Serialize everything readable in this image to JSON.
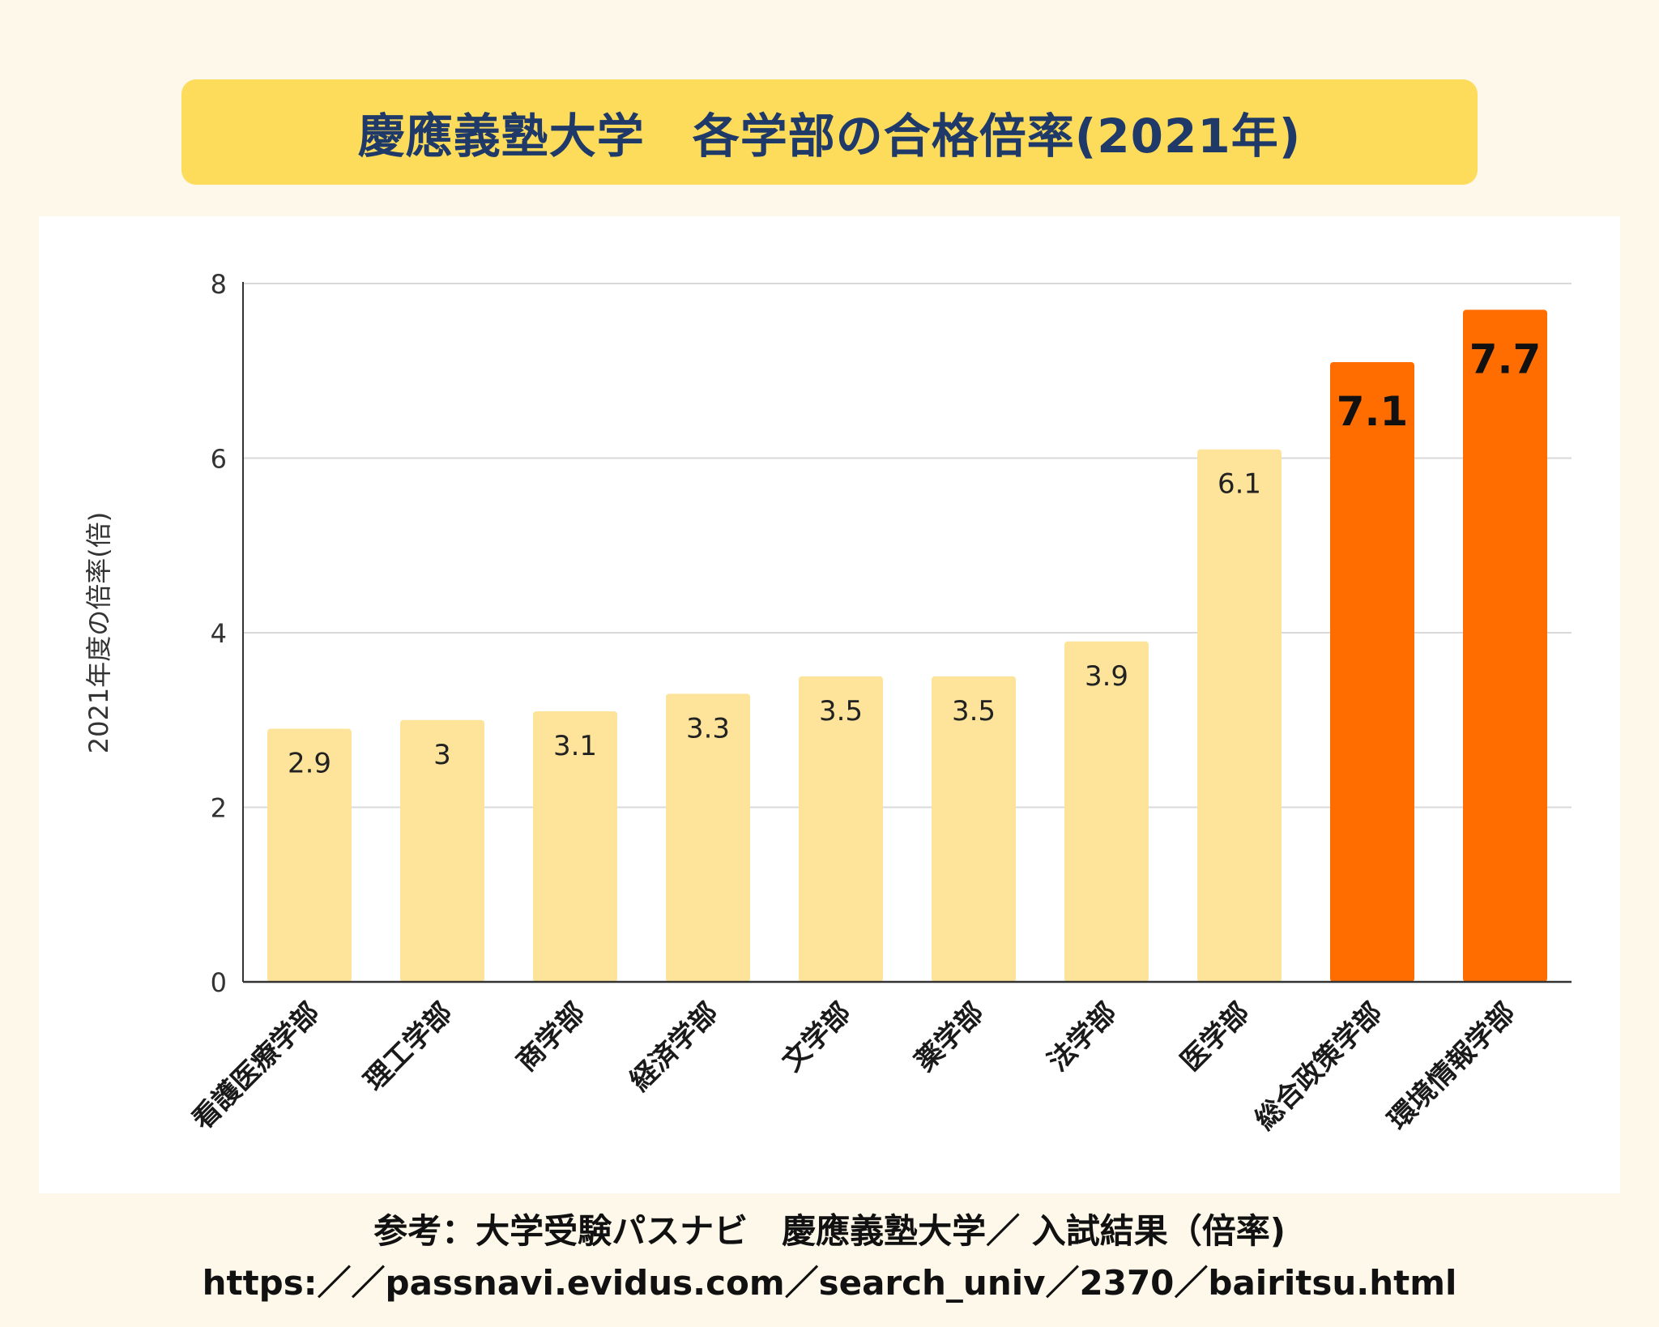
{
  "header": {
    "title": "慶應義塾大学　各学部の合格倍率(2021年)"
  },
  "footer": {
    "source_line1": "参考：大学受験パスナビ　慶應義塾大学／ 入試結果（倍率)",
    "source_line2": "https:／／passnavi.evidus.com／search_univ／2370／bairitsu.html"
  },
  "chart_data": {
    "type": "bar",
    "ylabel": "2021年度の倍率(倍)",
    "xlabel": "",
    "ylim": [
      0,
      8
    ],
    "yticks": [
      0,
      2,
      4,
      6,
      8
    ],
    "grid": true,
    "categories": [
      "看護医療学部",
      "理工学部",
      "商学部",
      "経済学部",
      "文学部",
      "薬学部",
      "法学部",
      "医学部",
      "総合政策学部",
      "環境情報学部"
    ],
    "values": [
      2.9,
      3,
      3.1,
      3.3,
      3.5,
      3.5,
      3.9,
      6.1,
      7.1,
      7.7
    ],
    "data_labels": [
      "2.9",
      "3",
      "3.1",
      "3.3",
      "3.5",
      "3.5",
      "3.9",
      "6.1",
      "7.1",
      "7.7"
    ],
    "highlighted": [
      false,
      false,
      false,
      false,
      false,
      false,
      false,
      false,
      true,
      true
    ],
    "colors": {
      "bar": "#fde49a",
      "bar_highlight": "#ff6d00",
      "grid": "#d9d9d9",
      "axis": "#333333",
      "tick_text": "#333333",
      "label_text": "#222222"
    }
  }
}
